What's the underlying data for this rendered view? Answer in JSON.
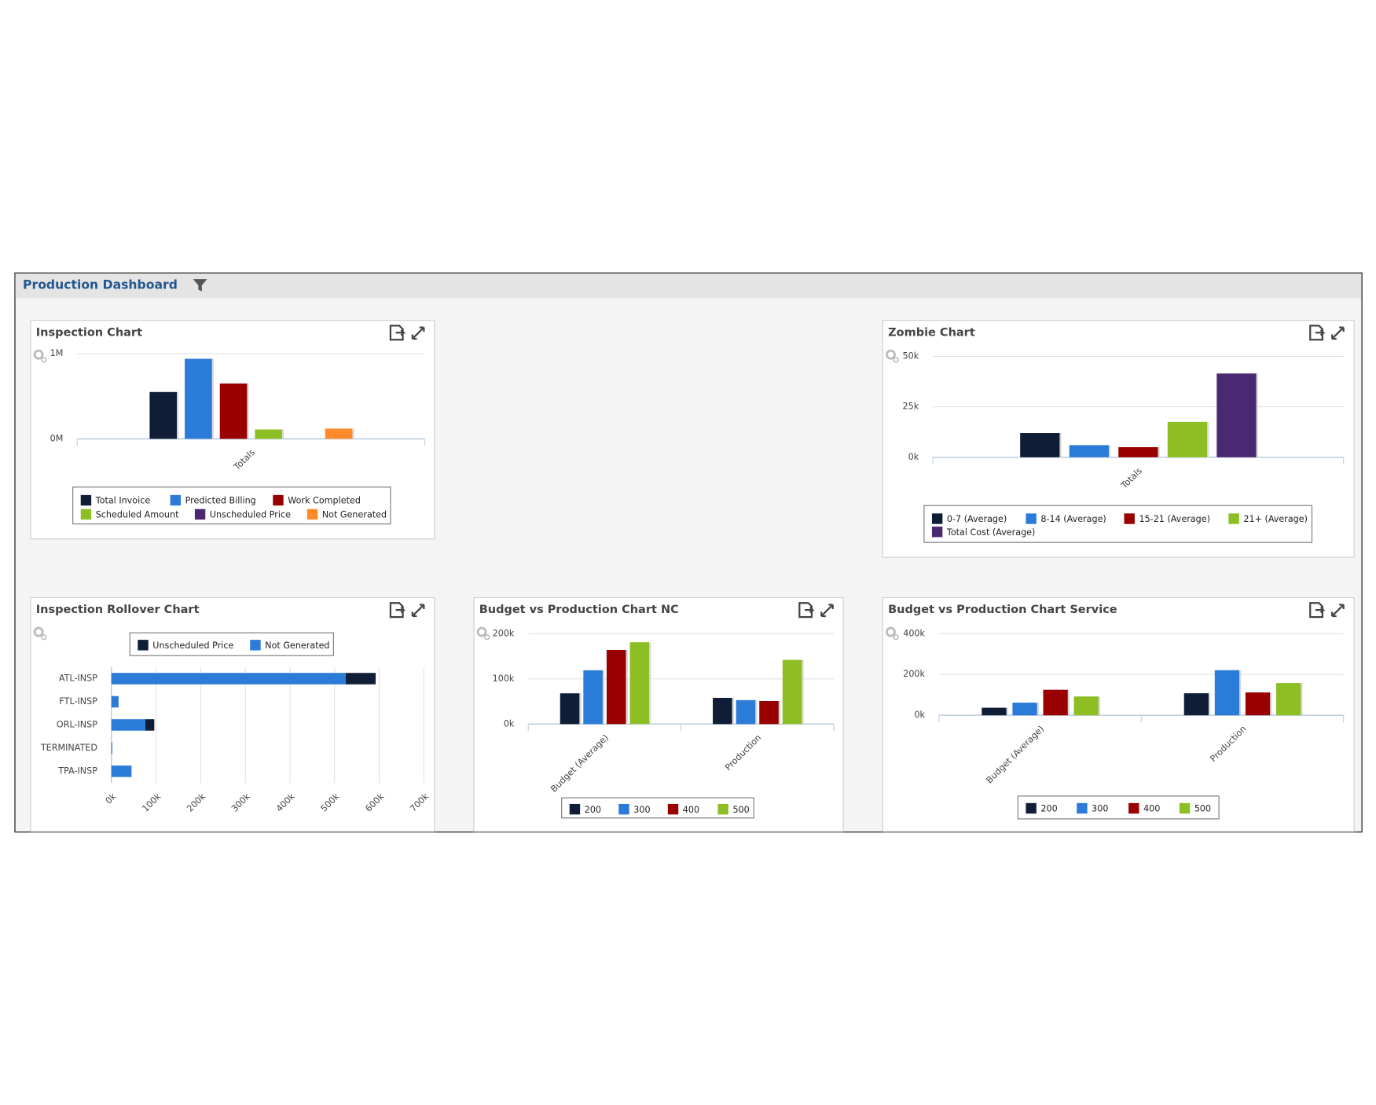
{
  "header": {
    "title": "Production Dashboard"
  },
  "chart_data": [
    {
      "type": "bar",
      "title": "Inspection Chart",
      "categories": [
        "Totals"
      ],
      "series": [
        {
          "name": "Total Invoice",
          "color": "#0f1e36",
          "values": [
            550000
          ]
        },
        {
          "name": "Predicted Billing",
          "color": "#2b7bd8",
          "values": [
            940000
          ]
        },
        {
          "name": "Work Completed",
          "color": "#990000",
          "values": [
            650000
          ]
        },
        {
          "name": "Scheduled Amount",
          "color": "#8dbf24",
          "values": [
            110000
          ]
        },
        {
          "name": "Unscheduled Price",
          "color": "#4b2872",
          "values": [
            0
          ]
        },
        {
          "name": "Not Generated",
          "color": "#ff8a2b",
          "values": [
            120000
          ]
        }
      ],
      "ylim": [
        0,
        1000000
      ],
      "yticks": [
        {
          "value": 0,
          "label": "0M"
        },
        {
          "value": 1000000,
          "label": "1M"
        }
      ],
      "grid": true
    },
    {
      "type": "bar",
      "title": "Zombie Chart",
      "categories": [
        "Totals"
      ],
      "series": [
        {
          "name": "0-7 (Average)",
          "color": "#0f1e36",
          "values": [
            12000
          ]
        },
        {
          "name": "8-14 (Average)",
          "color": "#2b7bd8",
          "values": [
            6000
          ]
        },
        {
          "name": "15-21 (Average)",
          "color": "#990000",
          "values": [
            5000
          ]
        },
        {
          "name": "21+ (Average)",
          "color": "#8dbf24",
          "values": [
            17500
          ]
        },
        {
          "name": "Total Cost (Average)",
          "color": "#4b2872",
          "values": [
            41500
          ]
        }
      ],
      "ylim": [
        0,
        50000
      ],
      "yticks": [
        {
          "value": 0,
          "label": "0k"
        },
        {
          "value": 25000,
          "label": "25k"
        },
        {
          "value": 50000,
          "label": "50k"
        }
      ],
      "grid": true
    },
    {
      "type": "hbar_stacked",
      "title": "Inspection Rollover Chart",
      "categories": [
        "ATL-INSP",
        "FTL-INSP",
        "ORL-INSP",
        "TERMINATED",
        "TPA-INSP"
      ],
      "series": [
        {
          "name": "Unscheduled Price",
          "color": "#0f1e36",
          "values": [
            67000,
            0,
            20000,
            0,
            0
          ]
        },
        {
          "name": "Not Generated",
          "color": "#2b7bd8",
          "values": [
            525000,
            16000,
            76000,
            2000,
            45000
          ]
        }
      ],
      "xlim": [
        0,
        700000
      ],
      "xticks": [
        {
          "value": 0,
          "label": "0k"
        },
        {
          "value": 100000,
          "label": "100k"
        },
        {
          "value": 200000,
          "label": "200k"
        },
        {
          "value": 300000,
          "label": "300k"
        },
        {
          "value": 400000,
          "label": "400k"
        },
        {
          "value": 500000,
          "label": "500k"
        },
        {
          "value": 600000,
          "label": "600k"
        },
        {
          "value": 700000,
          "label": "700k"
        }
      ],
      "grid": true
    },
    {
      "type": "bar",
      "title": "Budget vs Production Chart NC",
      "categories": [
        "Budget (Average)",
        "Production"
      ],
      "series": [
        {
          "name": "200",
          "color": "#0f1e36",
          "values": [
            68000,
            58000
          ]
        },
        {
          "name": "300",
          "color": "#2b7bd8",
          "values": [
            119000,
            53000
          ]
        },
        {
          "name": "400",
          "color": "#990000",
          "values": [
            164000,
            51000
          ]
        },
        {
          "name": "500",
          "color": "#8dbf24",
          "values": [
            181000,
            142000
          ]
        }
      ],
      "ylim": [
        0,
        200000
      ],
      "yticks": [
        {
          "value": 0,
          "label": "0k"
        },
        {
          "value": 100000,
          "label": "100k"
        },
        {
          "value": 200000,
          "label": "200k"
        }
      ],
      "grid": true
    },
    {
      "type": "bar",
      "title": "Budget vs Production Chart Service",
      "categories": [
        "Budget (Average)",
        "Production"
      ],
      "series": [
        {
          "name": "200",
          "color": "#0f1e36",
          "values": [
            37000,
            108000
          ]
        },
        {
          "name": "300",
          "color": "#2b7bd8",
          "values": [
            62000,
            221000
          ]
        },
        {
          "name": "400",
          "color": "#990000",
          "values": [
            125000,
            112000
          ]
        },
        {
          "name": "500",
          "color": "#8dbf24",
          "values": [
            92000,
            158000
          ]
        }
      ],
      "ylim": [
        0,
        400000
      ],
      "yticks": [
        {
          "value": 0,
          "label": "0k"
        },
        {
          "value": 200000,
          "label": "200k"
        },
        {
          "value": 400000,
          "label": "400k"
        }
      ],
      "grid": true
    }
  ]
}
